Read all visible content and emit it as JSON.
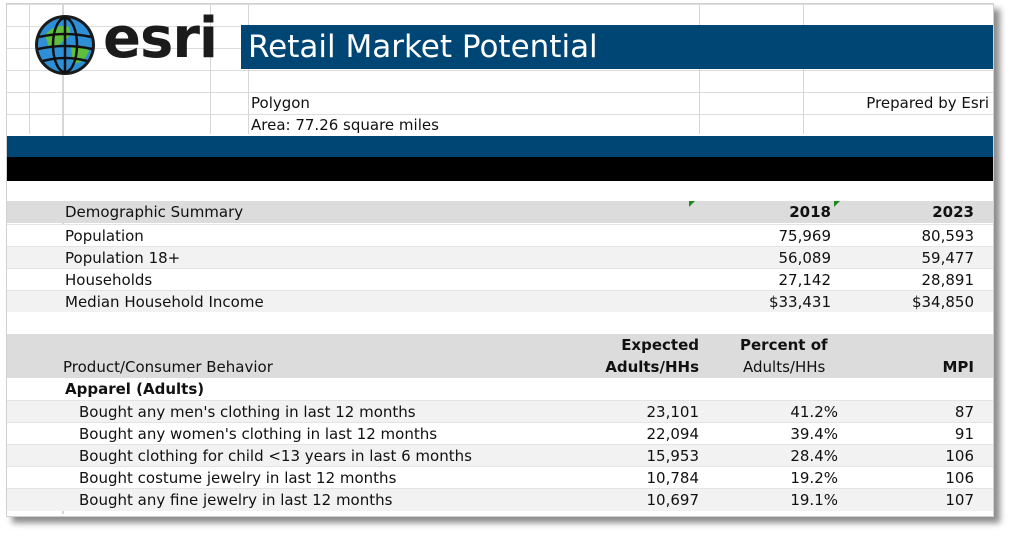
{
  "logo": {
    "text": "esri",
    "icon": "globe-icon"
  },
  "header": {
    "title": "Retail Market Potential",
    "area_name": "Polygon",
    "area": "Area: 77.26 square miles",
    "prepared_by": "Prepared by Esri"
  },
  "colors": {
    "brand_blue": "#004675",
    "band_black": "#000000",
    "header_gray": "#dcdcdc"
  },
  "demographic": {
    "header": "Demographic Summary",
    "col_2018": "2018",
    "col_2023": "2023",
    "rows": [
      {
        "label": "Population",
        "v2018": "75,969",
        "v2023": "80,593"
      },
      {
        "label": "Population 18+",
        "v2018": "56,089",
        "v2023": "59,477"
      },
      {
        "label": "Households",
        "v2018": "27,142",
        "v2023": "28,891"
      },
      {
        "label": "Median Household Income",
        "v2018": "$33,431",
        "v2023": "$34,850"
      }
    ]
  },
  "products": {
    "header": "Product/Consumer Behavior",
    "expected_1": "Expected",
    "expected_2": "Adults/HHs",
    "percent_1": "Percent of",
    "percent_2": "Adults/HHs",
    "mpi": "MPI",
    "category": "Apparel (Adults)",
    "rows": [
      {
        "label": "Bought any men's clothing in last 12 months",
        "expected": "23,101",
        "percent": "41.2%",
        "mpi": "87"
      },
      {
        "label": "Bought any women's clothing in last 12 months",
        "expected": "22,094",
        "percent": "39.4%",
        "mpi": "91"
      },
      {
        "label": "Bought clothing for child <13 years in last 6 months",
        "expected": "15,953",
        "percent": "28.4%",
        "mpi": "106"
      },
      {
        "label": "Bought costume jewelry in last 12 months",
        "expected": "10,784",
        "percent": "19.2%",
        "mpi": "106"
      },
      {
        "label": "Bought any fine jewelry in last 12 months",
        "expected": "10,697",
        "percent": "19.1%",
        "mpi": "107"
      }
    ]
  }
}
